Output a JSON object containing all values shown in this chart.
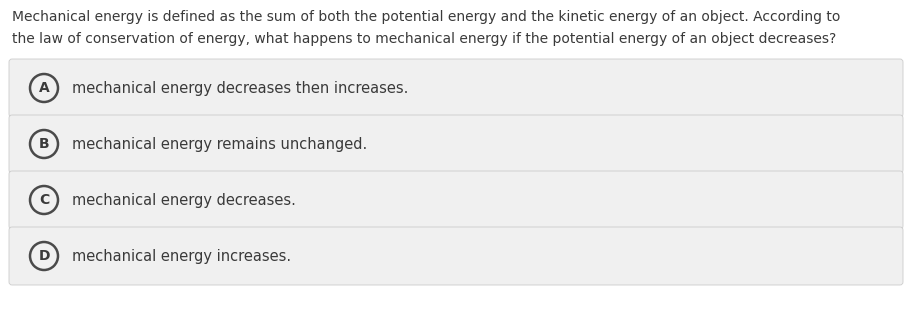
{
  "background_color": "#ffffff",
  "question_text_line1": "Mechanical energy is defined as the sum of both the potential energy and the kinetic energy of an object. According to",
  "question_text_line2": "the law of conservation of energy, what happens to mechanical energy if the potential energy of an object decreases?",
  "options": [
    {
      "label": "A",
      "text": "mechanical energy decreases then increases."
    },
    {
      "label": "B",
      "text": "mechanical energy remains unchanged."
    },
    {
      "label": "C",
      "text": "mechanical energy decreases."
    },
    {
      "label": "D",
      "text": "mechanical energy increases."
    }
  ],
  "option_bg_color": "#f0f0f0",
  "option_border_color": "#cccccc",
  "text_color": "#3a3a3a",
  "circle_edge_color": "#4a4a4a",
  "question_fontsize": 10.0,
  "option_fontsize": 10.5,
  "label_fontsize": 10.0,
  "fig_width": 9.12,
  "fig_height": 3.12,
  "dpi": 100
}
